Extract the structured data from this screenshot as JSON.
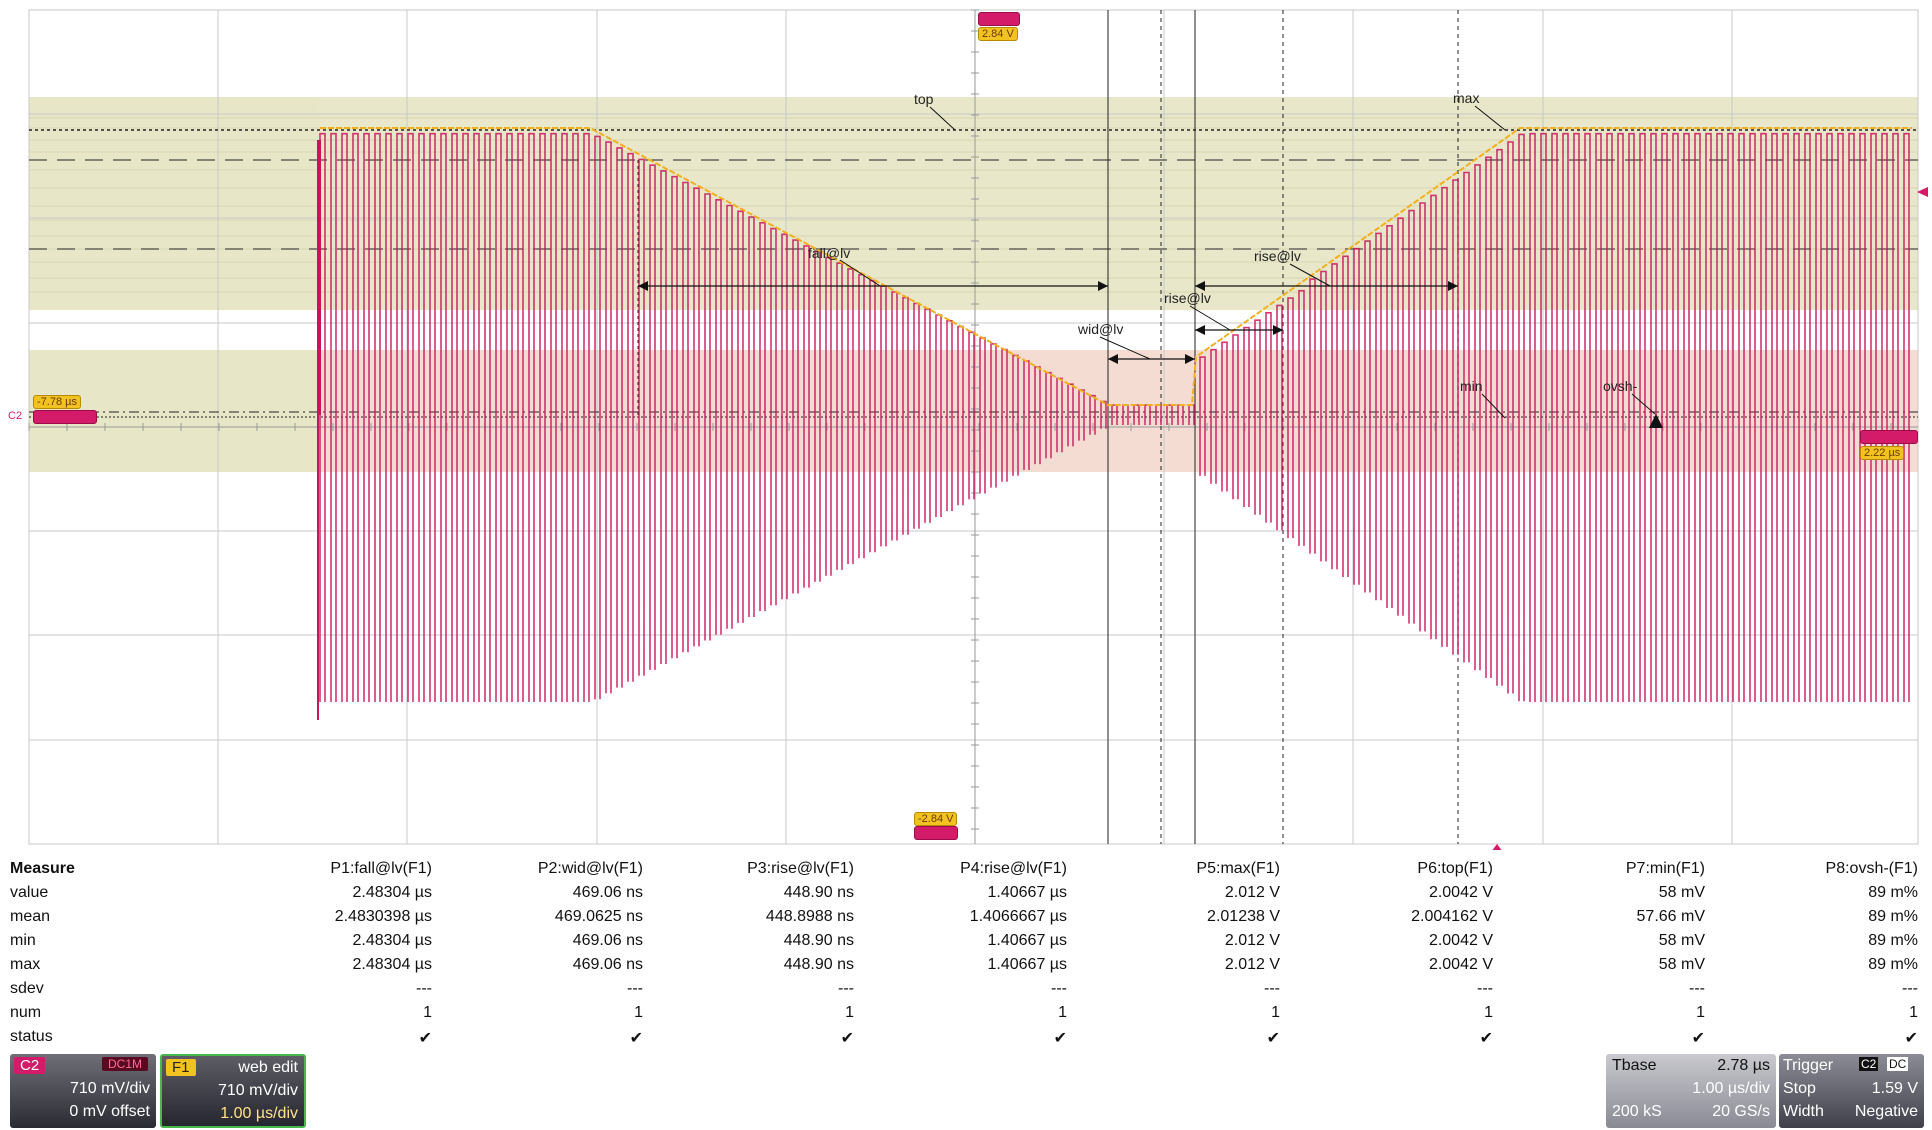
{
  "scope": {
    "colors": {
      "waveform": "#c8145a",
      "envelope": "#f0b020",
      "band_yellow": "#e7e6c7",
      "band_pink": "#f4dcd3",
      "grid": "#c8c8c8"
    },
    "annotations": {
      "top": "top",
      "max": "max",
      "fall": "fall@lv",
      "wid": "wid@lv",
      "rise1": "rise@lv",
      "rise2": "rise@lv",
      "min": "min",
      "ovsh": "ovsh-"
    },
    "markers": {
      "trig_top_value": "2.84 V",
      "trig_bottom_value": "-2.84 V",
      "left_delay": "-7.78 µs",
      "left_channel": "C2",
      "right_value": "2.22 µs"
    }
  },
  "measure": {
    "header_label": "Measure",
    "params": [
      "P1:fall@lv(F1)",
      "P2:wid@lv(F1)",
      "P3:rise@lv(F1)",
      "P4:rise@lv(F1)",
      "P5:max(F1)",
      "P6:top(F1)",
      "P7:min(F1)",
      "P8:ovsh-(F1)"
    ],
    "rows": [
      {
        "label": "value",
        "cells": [
          "2.48304 µs",
          "469.06 ns",
          "448.90 ns",
          "1.40667 µs",
          "2.012 V",
          "2.0042 V",
          "58 mV",
          "89 m%"
        ]
      },
      {
        "label": "mean",
        "cells": [
          "2.4830398 µs",
          "469.0625 ns",
          "448.8988 ns",
          "1.4066667 µs",
          "2.01238 V",
          "2.004162 V",
          "57.66 mV",
          "89 m%"
        ]
      },
      {
        "label": "min",
        "cells": [
          "2.48304 µs",
          "469.06 ns",
          "448.90 ns",
          "1.40667 µs",
          "2.012 V",
          "2.0042 V",
          "58 mV",
          "89 m%"
        ]
      },
      {
        "label": "max",
        "cells": [
          "2.48304 µs",
          "469.06 ns",
          "448.90 ns",
          "1.40667 µs",
          "2.012 V",
          "2.0042 V",
          "58 mV",
          "89 m%"
        ]
      },
      {
        "label": "sdev",
        "cells": [
          "---",
          "---",
          "---",
          "---",
          "---",
          "---",
          "---",
          "---"
        ]
      },
      {
        "label": "num",
        "cells": [
          "1",
          "1",
          "1",
          "1",
          "1",
          "1",
          "1",
          "1"
        ]
      },
      {
        "label": "status",
        "cells": [
          "✔",
          "✔",
          "✔",
          "✔",
          "✔",
          "✔",
          "✔",
          "✔"
        ]
      }
    ]
  },
  "channels": {
    "c2": {
      "tag": "C2",
      "tag2": "DC1M",
      "scale": "710 mV/div",
      "offset": "0 mV offset",
      "color": "#d41b6a"
    },
    "f1": {
      "tag": "F1",
      "name": "web edit",
      "scale": "710 mV/div",
      "timebase": "1.00 µs/div",
      "color": "#f2c320"
    }
  },
  "timebase": {
    "label": "Tbase",
    "delay": "2.78 µs",
    "per_div": "1.00 µs/div",
    "samples": "200 kS",
    "rate": "20 GS/s"
  },
  "trigger": {
    "label": "Trigger",
    "ch": "C2",
    "coupling": "DC",
    "mode": "Stop",
    "level": "1.59 V",
    "type": "Width",
    "slope": "Negative"
  }
}
